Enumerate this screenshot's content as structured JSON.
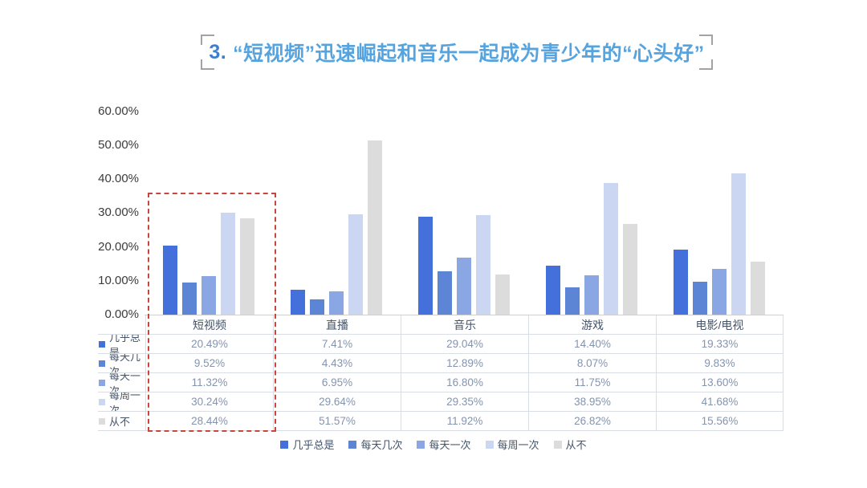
{
  "title": {
    "number": "3.",
    "text": "“短视频”迅速崛起和音乐一起成为青少年的“心头好”",
    "accent_color": "#56A4DF"
  },
  "chart_data": {
    "type": "bar",
    "title": "3.“短视频”迅速崛起和音乐一起成为青少年的“心头好”",
    "categories": [
      "短视频",
      "直播",
      "音乐",
      "游戏",
      "电影/电视"
    ],
    "series": [
      {
        "name": "几乎总是",
        "color": "#4470DB",
        "values": [
          20.49,
          7.41,
          29.04,
          14.4,
          19.33
        ]
      },
      {
        "name": "每天几次",
        "color": "#5C85D6",
        "values": [
          9.52,
          4.43,
          12.89,
          8.07,
          9.83
        ]
      },
      {
        "name": "每天一次",
        "color": "#8AA7E3",
        "values": [
          11.32,
          6.95,
          16.8,
          11.75,
          13.6
        ]
      },
      {
        "name": "每周一次",
        "color": "#CAD6F2",
        "values": [
          30.24,
          29.64,
          29.35,
          38.95,
          41.68
        ]
      },
      {
        "name": "从不",
        "color": "#DCDCDC",
        "values": [
          28.44,
          51.57,
          11.92,
          26.82,
          15.56
        ]
      }
    ],
    "y_axis": {
      "min": 0,
      "max": 60,
      "ticks": [
        "60.00%",
        "50.00%",
        "40.00%",
        "30.00%",
        "20.00%",
        "10.00%",
        "0.00%"
      ]
    },
    "xlabel": "",
    "ylabel": "",
    "gridlines": false,
    "legend_position": "bottom",
    "data_table_shown": true,
    "value_suffix": "%",
    "highlight": {
      "category": "短视频",
      "style": "dashed-box",
      "color": "#C8463C"
    }
  }
}
